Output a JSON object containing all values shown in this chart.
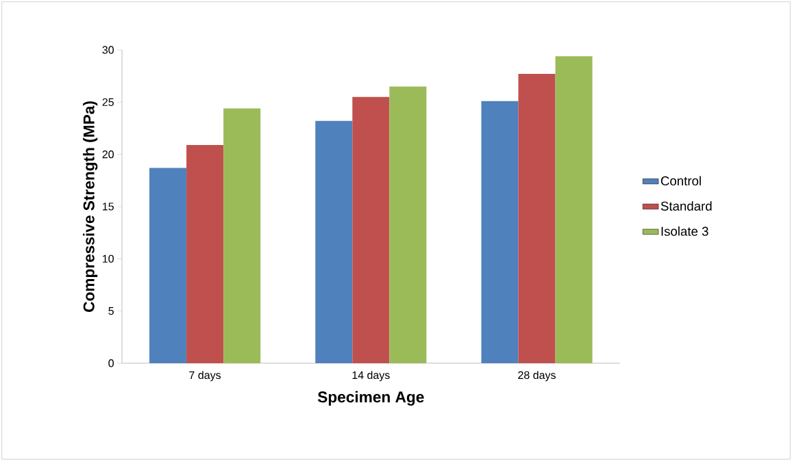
{
  "chart_data": {
    "type": "bar",
    "xlabel": "Specimen Age",
    "ylabel": "Compressive Strength (MPa)",
    "categories": [
      "7 days",
      "14 days",
      "28 days"
    ],
    "series": [
      {
        "name": "Control",
        "color": "#4f81bd",
        "values": [
          18.7,
          23.2,
          25.1
        ]
      },
      {
        "name": "Standard",
        "color": "#c0504d",
        "values": [
          20.9,
          25.5,
          27.7
        ]
      },
      {
        "name": "Isolate 3",
        "color": "#9bbb59",
        "values": [
          24.4,
          26.5,
          29.4
        ]
      }
    ],
    "ylim": [
      0,
      30
    ],
    "yticks": [
      0,
      5,
      10,
      15,
      20,
      25,
      30
    ],
    "grid": false,
    "legend": "right"
  }
}
